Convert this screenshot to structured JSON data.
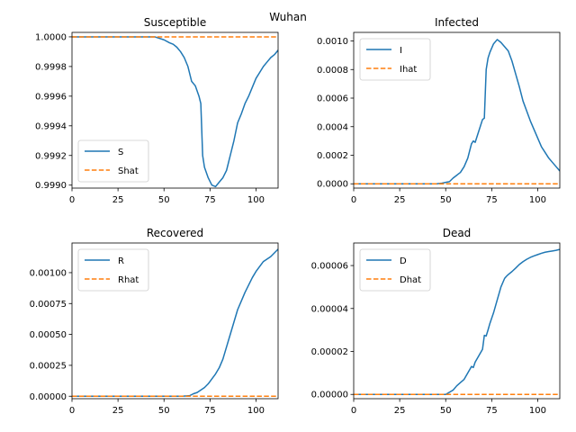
{
  "figure_title": "Wuhan",
  "colors": {
    "actual": "#1f77b4",
    "predicted": "#ff7f0e"
  },
  "chart_data": [
    {
      "type": "line",
      "title": "Susceptible",
      "xlabel": "",
      "ylabel": "",
      "xlim": [
        0,
        112
      ],
      "ylim": [
        0.99898,
        1.00003
      ],
      "xticks": [
        0,
        25,
        50,
        75,
        100
      ],
      "yticks": [
        0.999,
        0.9992,
        0.9994,
        0.9996,
        0.9998,
        1.0
      ],
      "ytick_labels": [
        "0.9990",
        "0.9992",
        "0.9994",
        "0.9996",
        "0.9998",
        "1.0000"
      ],
      "legend": "lower-left",
      "grid": false,
      "series": [
        {
          "name": "S",
          "style": "solid",
          "x": [
            0,
            45,
            50,
            53,
            55,
            57,
            59,
            61,
            63,
            65,
            67,
            69,
            70,
            71,
            72,
            74,
            76,
            78,
            80,
            82,
            84,
            86,
            88,
            90,
            92,
            94,
            96,
            98,
            100,
            102,
            104,
            106,
            108,
            110,
            112
          ],
          "y": [
            1.0,
            1.0,
            0.99998,
            0.99996,
            0.99995,
            0.99993,
            0.9999,
            0.99986,
            0.9998,
            0.9997,
            0.99967,
            0.9996,
            0.99955,
            0.9992,
            0.99912,
            0.99905,
            0.999,
            0.99899,
            0.99902,
            0.99905,
            0.9991,
            0.9992,
            0.9993,
            0.99942,
            0.99948,
            0.99955,
            0.9996,
            0.99966,
            0.99972,
            0.99976,
            0.9998,
            0.99983,
            0.99986,
            0.99988,
            0.99991
          ]
        },
        {
          "name": "Shat",
          "style": "dashed",
          "x": [
            0,
            112
          ],
          "y": [
            1.0,
            1.0
          ]
        }
      ]
    },
    {
      "type": "line",
      "title": "Infected",
      "xlabel": "",
      "ylabel": "",
      "xlim": [
        0,
        112
      ],
      "ylim": [
        -3e-05,
        0.00106
      ],
      "xticks": [
        0,
        25,
        50,
        75,
        100
      ],
      "yticks": [
        0,
        0.0002,
        0.0004,
        0.0006,
        0.0008,
        0.001
      ],
      "ytick_labels": [
        "0.0000",
        "0.0002",
        "0.0004",
        "0.0006",
        "0.0008",
        "0.0010"
      ],
      "legend": "top-left",
      "grid": false,
      "series": [
        {
          "name": "I",
          "style": "solid",
          "x": [
            0,
            45,
            48,
            50,
            52,
            54,
            56,
            58,
            60,
            62,
            63,
            64,
            65,
            66,
            68,
            70,
            71,
            72,
            73,
            74,
            76,
            78,
            80,
            82,
            84,
            86,
            88,
            90,
            92,
            94,
            96,
            98,
            100,
            102,
            104,
            106,
            108,
            110,
            112
          ],
          "y": [
            0,
            0,
            5e-06,
            1e-05,
            1.5e-05,
            4e-05,
            6e-05,
            8e-05,
            0.00012,
            0.00018,
            0.00023,
            0.00028,
            0.0003,
            0.00029,
            0.00037,
            0.00045,
            0.00046,
            0.0008,
            0.00088,
            0.00092,
            0.00098,
            0.00101,
            0.00099,
            0.00096,
            0.00093,
            0.00086,
            0.00077,
            0.00068,
            0.00058,
            0.00051,
            0.00044,
            0.00038,
            0.00032,
            0.00026,
            0.00022,
            0.00018,
            0.00015,
            0.00012,
            9e-05
          ]
        },
        {
          "name": "Ihat",
          "style": "dashed",
          "x": [
            0,
            112
          ],
          "y": [
            0,
            0
          ]
        }
      ]
    },
    {
      "type": "line",
      "title": "Recovered",
      "xlabel": "",
      "ylabel": "",
      "xlim": [
        0,
        112
      ],
      "ylim": [
        -2e-05,
        0.00124
      ],
      "xticks": [
        0,
        25,
        50,
        75,
        100
      ],
      "yticks": [
        0,
        0.00025,
        0.0005,
        0.00075,
        0.001
      ],
      "ytick_labels": [
        "0.00000",
        "0.00025",
        "0.00050",
        "0.00075",
        "0.00100"
      ],
      "legend": "top-left",
      "grid": false,
      "series": [
        {
          "name": "R",
          "style": "solid",
          "x": [
            0,
            60,
            64,
            66,
            68,
            70,
            72,
            74,
            76,
            78,
            80,
            82,
            84,
            86,
            88,
            90,
            92,
            94,
            96,
            98,
            100,
            102,
            104,
            106,
            108,
            110,
            112
          ],
          "y": [
            0,
            0,
            5e-06,
            2e-05,
            3e-05,
            5e-05,
            7e-05,
            0.0001,
            0.00014,
            0.00018,
            0.00023,
            0.0003,
            0.0004,
            0.0005,
            0.0006,
            0.0007,
            0.00077,
            0.00084,
            0.0009,
            0.00096,
            0.00101,
            0.00105,
            0.00109,
            0.00111,
            0.00113,
            0.00116,
            0.00119
          ]
        },
        {
          "name": "Rhat",
          "style": "dashed",
          "x": [
            0,
            112
          ],
          "y": [
            0,
            0
          ]
        }
      ]
    },
    {
      "type": "line",
      "title": "Dead",
      "xlabel": "",
      "ylabel": "",
      "xlim": [
        0,
        112
      ],
      "ylim": [
        -2e-06,
        7.05e-05
      ],
      "xticks": [
        0,
        25,
        50,
        75,
        100
      ],
      "yticks": [
        0,
        2e-05,
        4e-05,
        6e-05
      ],
      "ytick_labels": [
        "0.00000",
        "0.00002",
        "0.00004",
        "0.00006"
      ],
      "legend": "top-left",
      "grid": false,
      "series": [
        {
          "name": "D",
          "style": "solid",
          "x": [
            0,
            50,
            52,
            54,
            56,
            58,
            60,
            62,
            64,
            65,
            66,
            68,
            70,
            71,
            72,
            73,
            74,
            76,
            78,
            80,
            82,
            83,
            84,
            86,
            88,
            90,
            92,
            94,
            96,
            98,
            100,
            102,
            104,
            106,
            108,
            110,
            112
          ],
          "y": [
            0,
            0,
            1e-06,
            2e-06,
            4e-06,
            5.5e-06,
            7e-06,
            1e-05,
            1.3e-05,
            1.25e-05,
            1.5e-05,
            1.8e-05,
            2.1e-05,
            2.75e-05,
            2.72e-05,
            3e-05,
            3.3e-05,
            3.8e-05,
            4.4e-05,
            5e-05,
            5.4e-05,
            5.5e-05,
            5.58e-05,
            5.72e-05,
            5.88e-05,
            6.05e-05,
            6.18e-05,
            6.29e-05,
            6.38e-05,
            6.45e-05,
            6.51e-05,
            6.57e-05,
            6.62e-05,
            6.65e-05,
            6.68e-05,
            6.71e-05,
            6.75e-05
          ]
        },
        {
          "name": "Dhat",
          "style": "dashed",
          "x": [
            0,
            112
          ],
          "y": [
            0,
            0
          ]
        }
      ]
    }
  ]
}
